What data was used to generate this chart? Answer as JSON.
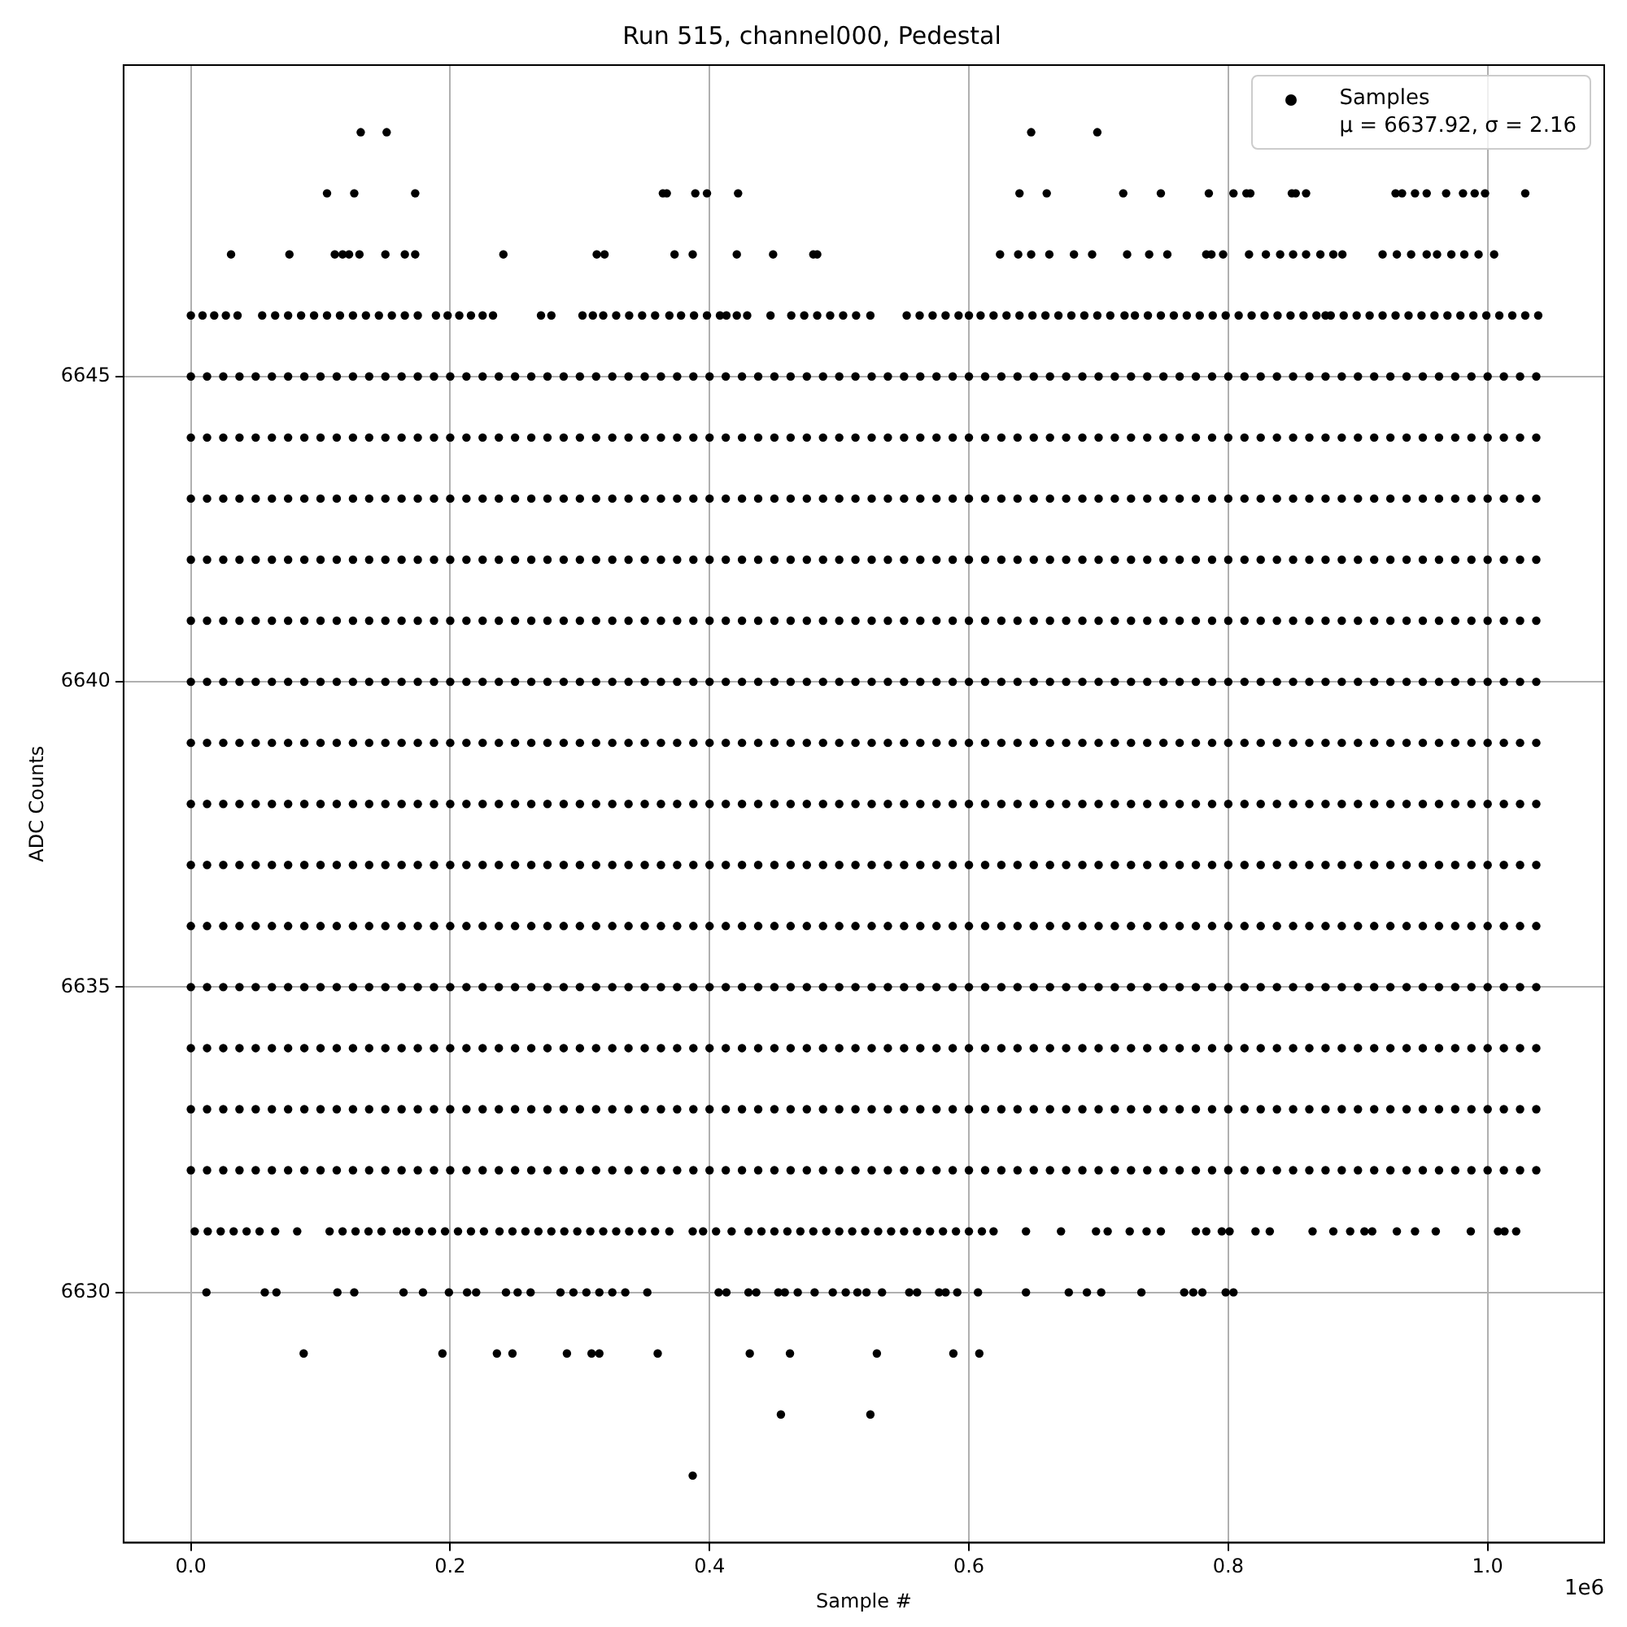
{
  "chart_data": {
    "type": "scatter",
    "title": "Run 515, channel000, Pedestal",
    "xlabel": "Sample #",
    "ylabel": "ADC Counts",
    "annotations": [
      "1e6"
    ],
    "x": [
      0,
      0.0125,
      0.025,
      0.0375,
      0.05,
      0.0625,
      0.075,
      0.0875,
      0.1,
      0.1125,
      0.125,
      0.1375,
      0.15,
      0.1625,
      0.175,
      0.1875,
      0.2,
      0.2125,
      0.225,
      0.2375,
      0.25,
      0.2625,
      0.275,
      0.2875,
      0.3,
      0.3125,
      0.325,
      0.3375,
      0.35,
      0.3625,
      0.375,
      0.3875,
      0.4,
      0.4125,
      0.425,
      0.4375,
      0.45,
      0.4625,
      0.475,
      0.4875,
      0.5,
      0.5125,
      0.525,
      0.5375,
      0.55,
      0.5625,
      0.575,
      0.5875,
      0.6,
      0.6125,
      0.625,
      0.6375,
      0.65,
      0.6625,
      0.675,
      0.6875,
      0.7,
      0.7125,
      0.725,
      0.7375,
      0.75,
      0.7625,
      0.775,
      0.7875,
      0.8,
      0.8125,
      0.825,
      0.8375,
      0.85,
      0.8625,
      0.875,
      0.8875,
      0.9,
      0.9125,
      0.925,
      0.9375,
      0.95,
      0.9625,
      0.975,
      0.9875,
      1,
      1.0125,
      1.025,
      1.0375
    ],
    "series": [
      {
        "name": "Samples\nμ = 6637.92, σ = 2.16",
        "color": "#000000",
        "values": [
          6645,
          6645,
          6645,
          6645,
          6645,
          6645,
          6645,
          6645,
          6645,
          6645,
          6645,
          6645,
          6645,
          6645,
          6645,
          6645,
          6645,
          6645,
          6645,
          6645,
          6645,
          6645,
          6645,
          6645,
          6645,
          6645,
          6645,
          6645,
          6645,
          6645,
          6645,
          6645,
          6645,
          6645,
          6645,
          6645,
          6645,
          6645,
          6645,
          6645,
          6645,
          6645,
          6645,
          6645,
          6645,
          6645,
          6645,
          6645,
          6645,
          6645,
          6645,
          6645,
          6645,
          6645,
          6645,
          6645,
          6645,
          6645,
          6645,
          6645,
          6645,
          6645,
          6645,
          6645,
          6645,
          6645,
          6645,
          6645,
          6645,
          6645,
          6645,
          6645,
          6645,
          6645,
          6645,
          6645,
          6645,
          6645,
          6645,
          6645,
          6645,
          6645,
          6645,
          6645
        ]
      },
      {
        "color": "#000000",
        "values": [
          6644,
          6644,
          6644,
          6644,
          6644,
          6644,
          6644,
          6644,
          6644,
          6644,
          6644,
          6644,
          6644,
          6644,
          6644,
          6644,
          6644,
          6644,
          6644,
          6644,
          6644,
          6644,
          6644,
          6644,
          6644,
          6644,
          6644,
          6644,
          6644,
          6644,
          6644,
          6644,
          6644,
          6644,
          6644,
          6644,
          6644,
          6644,
          6644,
          6644,
          6644,
          6644,
          6644,
          6644,
          6644,
          6644,
          6644,
          6644,
          6644,
          6644,
          6644,
          6644,
          6644,
          6644,
          6644,
          6644,
          6644,
          6644,
          6644,
          6644,
          6644,
          6644,
          6644,
          6644,
          6644,
          6644,
          6644,
          6644,
          6644,
          6644,
          6644,
          6644,
          6644,
          6644,
          6644,
          6644,
          6644,
          6644,
          6644,
          6644,
          6644,
          6644,
          6644,
          6644
        ]
      },
      {
        "color": "#000000",
        "values": [
          6643,
          6643,
          6643,
          6643,
          6643,
          6643,
          6643,
          6643,
          6643,
          6643,
          6643,
          6643,
          6643,
          6643,
          6643,
          6643,
          6643,
          6643,
          6643,
          6643,
          6643,
          6643,
          6643,
          6643,
          6643,
          6643,
          6643,
          6643,
          6643,
          6643,
          6643,
          6643,
          6643,
          6643,
          6643,
          6643,
          6643,
          6643,
          6643,
          6643,
          6643,
          6643,
          6643,
          6643,
          6643,
          6643,
          6643,
          6643,
          6643,
          6643,
          6643,
          6643,
          6643,
          6643,
          6643,
          6643,
          6643,
          6643,
          6643,
          6643,
          6643,
          6643,
          6643,
          6643,
          6643,
          6643,
          6643,
          6643,
          6643,
          6643,
          6643,
          6643,
          6643,
          6643,
          6643,
          6643,
          6643,
          6643,
          6643,
          6643,
          6643,
          6643,
          6643,
          6643
        ]
      },
      {
        "color": "#000000",
        "values": [
          6642,
          6642,
          6642,
          6642,
          6642,
          6642,
          6642,
          6642,
          6642,
          6642,
          6642,
          6642,
          6642,
          6642,
          6642,
          6642,
          6642,
          6642,
          6642,
          6642,
          6642,
          6642,
          6642,
          6642,
          6642,
          6642,
          6642,
          6642,
          6642,
          6642,
          6642,
          6642,
          6642,
          6642,
          6642,
          6642,
          6642,
          6642,
          6642,
          6642,
          6642,
          6642,
          6642,
          6642,
          6642,
          6642,
          6642,
          6642,
          6642,
          6642,
          6642,
          6642,
          6642,
          6642,
          6642,
          6642,
          6642,
          6642,
          6642,
          6642,
          6642,
          6642,
          6642,
          6642,
          6642,
          6642,
          6642,
          6642,
          6642,
          6642,
          6642,
          6642,
          6642,
          6642,
          6642,
          6642,
          6642,
          6642,
          6642,
          6642,
          6642,
          6642,
          6642,
          6642
        ]
      },
      {
        "color": "#000000",
        "values": [
          6641,
          6641,
          6641,
          6641,
          6641,
          6641,
          6641,
          6641,
          6641,
          6641,
          6641,
          6641,
          6641,
          6641,
          6641,
          6641,
          6641,
          6641,
          6641,
          6641,
          6641,
          6641,
          6641,
          6641,
          6641,
          6641,
          6641,
          6641,
          6641,
          6641,
          6641,
          6641,
          6641,
          6641,
          6641,
          6641,
          6641,
          6641,
          6641,
          6641,
          6641,
          6641,
          6641,
          6641,
          6641,
          6641,
          6641,
          6641,
          6641,
          6641,
          6641,
          6641,
          6641,
          6641,
          6641,
          6641,
          6641,
          6641,
          6641,
          6641,
          6641,
          6641,
          6641,
          6641,
          6641,
          6641,
          6641,
          6641,
          6641,
          6641,
          6641,
          6641,
          6641,
          6641,
          6641,
          6641,
          6641,
          6641,
          6641,
          6641,
          6641,
          6641,
          6641,
          6641
        ]
      },
      {
        "color": "#000000",
        "values": [
          6640,
          6640,
          6640,
          6640,
          6640,
          6640,
          6640,
          6640,
          6640,
          6640,
          6640,
          6640,
          6640,
          6640,
          6640,
          6640,
          6640,
          6640,
          6640,
          6640,
          6640,
          6640,
          6640,
          6640,
          6640,
          6640,
          6640,
          6640,
          6640,
          6640,
          6640,
          6640,
          6640,
          6640,
          6640,
          6640,
          6640,
          6640,
          6640,
          6640,
          6640,
          6640,
          6640,
          6640,
          6640,
          6640,
          6640,
          6640,
          6640,
          6640,
          6640,
          6640,
          6640,
          6640,
          6640,
          6640,
          6640,
          6640,
          6640,
          6640,
          6640,
          6640,
          6640,
          6640,
          6640,
          6640,
          6640,
          6640,
          6640,
          6640,
          6640,
          6640,
          6640,
          6640,
          6640,
          6640,
          6640,
          6640,
          6640,
          6640,
          6640,
          6640,
          6640,
          6640
        ]
      },
      {
        "color": "#000000",
        "values": [
          6639,
          6639,
          6639,
          6639,
          6639,
          6639,
          6639,
          6639,
          6639,
          6639,
          6639,
          6639,
          6639,
          6639,
          6639,
          6639,
          6639,
          6639,
          6639,
          6639,
          6639,
          6639,
          6639,
          6639,
          6639,
          6639,
          6639,
          6639,
          6639,
          6639,
          6639,
          6639,
          6639,
          6639,
          6639,
          6639,
          6639,
          6639,
          6639,
          6639,
          6639,
          6639,
          6639,
          6639,
          6639,
          6639,
          6639,
          6639,
          6639,
          6639,
          6639,
          6639,
          6639,
          6639,
          6639,
          6639,
          6639,
          6639,
          6639,
          6639,
          6639,
          6639,
          6639,
          6639,
          6639,
          6639,
          6639,
          6639,
          6639,
          6639,
          6639,
          6639,
          6639,
          6639,
          6639,
          6639,
          6639,
          6639,
          6639,
          6639,
          6639,
          6639,
          6639,
          6639
        ]
      },
      {
        "color": "#000000",
        "values": [
          6638,
          6638,
          6638,
          6638,
          6638,
          6638,
          6638,
          6638,
          6638,
          6638,
          6638,
          6638,
          6638,
          6638,
          6638,
          6638,
          6638,
          6638,
          6638,
          6638,
          6638,
          6638,
          6638,
          6638,
          6638,
          6638,
          6638,
          6638,
          6638,
          6638,
          6638,
          6638,
          6638,
          6638,
          6638,
          6638,
          6638,
          6638,
          6638,
          6638,
          6638,
          6638,
          6638,
          6638,
          6638,
          6638,
          6638,
          6638,
          6638,
          6638,
          6638,
          6638,
          6638,
          6638,
          6638,
          6638,
          6638,
          6638,
          6638,
          6638,
          6638,
          6638,
          6638,
          6638,
          6638,
          6638,
          6638,
          6638,
          6638,
          6638,
          6638,
          6638,
          6638,
          6638,
          6638,
          6638,
          6638,
          6638,
          6638,
          6638,
          6638,
          6638,
          6638,
          6638
        ]
      },
      {
        "color": "#000000",
        "values": [
          6637,
          6637,
          6637,
          6637,
          6637,
          6637,
          6637,
          6637,
          6637,
          6637,
          6637,
          6637,
          6637,
          6637,
          6637,
          6637,
          6637,
          6637,
          6637,
          6637,
          6637,
          6637,
          6637,
          6637,
          6637,
          6637,
          6637,
          6637,
          6637,
          6637,
          6637,
          6637,
          6637,
          6637,
          6637,
          6637,
          6637,
          6637,
          6637,
          6637,
          6637,
          6637,
          6637,
          6637,
          6637,
          6637,
          6637,
          6637,
          6637,
          6637,
          6637,
          6637,
          6637,
          6637,
          6637,
          6637,
          6637,
          6637,
          6637,
          6637,
          6637,
          6637,
          6637,
          6637,
          6637,
          6637,
          6637,
          6637,
          6637,
          6637,
          6637,
          6637,
          6637,
          6637,
          6637,
          6637,
          6637,
          6637,
          6637,
          6637,
          6637,
          6637,
          6637,
          6637
        ]
      },
      {
        "color": "#000000",
        "values": [
          6636,
          6636,
          6636,
          6636,
          6636,
          6636,
          6636,
          6636,
          6636,
          6636,
          6636,
          6636,
          6636,
          6636,
          6636,
          6636,
          6636,
          6636,
          6636,
          6636,
          6636,
          6636,
          6636,
          6636,
          6636,
          6636,
          6636,
          6636,
          6636,
          6636,
          6636,
          6636,
          6636,
          6636,
          6636,
          6636,
          6636,
          6636,
          6636,
          6636,
          6636,
          6636,
          6636,
          6636,
          6636,
          6636,
          6636,
          6636,
          6636,
          6636,
          6636,
          6636,
          6636,
          6636,
          6636,
          6636,
          6636,
          6636,
          6636,
          6636,
          6636,
          6636,
          6636,
          6636,
          6636,
          6636,
          6636,
          6636,
          6636,
          6636,
          6636,
          6636,
          6636,
          6636,
          6636,
          6636,
          6636,
          6636,
          6636,
          6636,
          6636,
          6636,
          6636,
          6636
        ]
      },
      {
        "color": "#000000",
        "values": [
          6635,
          6635,
          6635,
          6635,
          6635,
          6635,
          6635,
          6635,
          6635,
          6635,
          6635,
          6635,
          6635,
          6635,
          6635,
          6635,
          6635,
          6635,
          6635,
          6635,
          6635,
          6635,
          6635,
          6635,
          6635,
          6635,
          6635,
          6635,
          6635,
          6635,
          6635,
          6635,
          6635,
          6635,
          6635,
          6635,
          6635,
          6635,
          6635,
          6635,
          6635,
          6635,
          6635,
          6635,
          6635,
          6635,
          6635,
          6635,
          6635,
          6635,
          6635,
          6635,
          6635,
          6635,
          6635,
          6635,
          6635,
          6635,
          6635,
          6635,
          6635,
          6635,
          6635,
          6635,
          6635,
          6635,
          6635,
          6635,
          6635,
          6635,
          6635,
          6635,
          6635,
          6635,
          6635,
          6635,
          6635,
          6635,
          6635,
          6635,
          6635,
          6635,
          6635,
          6635
        ]
      },
      {
        "color": "#000000",
        "values": [
          6634,
          6634,
          6634,
          6634,
          6634,
          6634,
          6634,
          6634,
          6634,
          6634,
          6634,
          6634,
          6634,
          6634,
          6634,
          6634,
          6634,
          6634,
          6634,
          6634,
          6634,
          6634,
          6634,
          6634,
          6634,
          6634,
          6634,
          6634,
          6634,
          6634,
          6634,
          6634,
          6634,
          6634,
          6634,
          6634,
          6634,
          6634,
          6634,
          6634,
          6634,
          6634,
          6634,
          6634,
          6634,
          6634,
          6634,
          6634,
          6634,
          6634,
          6634,
          6634,
          6634,
          6634,
          6634,
          6634,
          6634,
          6634,
          6634,
          6634,
          6634,
          6634,
          6634,
          6634,
          6634,
          6634,
          6634,
          6634,
          6634,
          6634,
          6634,
          6634,
          6634,
          6634,
          6634,
          6634,
          6634,
          6634,
          6634,
          6634,
          6634,
          6634,
          6634,
          6634
        ]
      },
      {
        "color": "#000000",
        "values": [
          6633,
          6633,
          6633,
          6633,
          6633,
          6633,
          6633,
          6633,
          6633,
          6633,
          6633,
          6633,
          6633,
          6633,
          6633,
          6633,
          6633,
          6633,
          6633,
          6633,
          6633,
          6633,
          6633,
          6633,
          6633,
          6633,
          6633,
          6633,
          6633,
          6633,
          6633,
          6633,
          6633,
          6633,
          6633,
          6633,
          6633,
          6633,
          6633,
          6633,
          6633,
          6633,
          6633,
          6633,
          6633,
          6633,
          6633,
          6633,
          6633,
          6633,
          6633,
          6633,
          6633,
          6633,
          6633,
          6633,
          6633,
          6633,
          6633,
          6633,
          6633,
          6633,
          6633,
          6633,
          6633,
          6633,
          6633,
          6633,
          6633,
          6633,
          6633,
          6633,
          6633,
          6633,
          6633,
          6633,
          6633,
          6633,
          6633,
          6633,
          6633,
          6633,
          6633,
          6633
        ]
      },
      {
        "color": "#000000",
        "values": [
          6632,
          6632,
          6632,
          6632,
          6632,
          6632,
          6632,
          6632,
          6632,
          6632,
          6632,
          6632,
          6632,
          6632,
          6632,
          6632,
          6632,
          6632,
          6632,
          6632,
          6632,
          6632,
          6632,
          6632,
          6632,
          6632,
          6632,
          6632,
          6632,
          6632,
          6632,
          6632,
          6632,
          6632,
          6632,
          6632,
          6632,
          6632,
          6632,
          6632,
          6632,
          6632,
          6632,
          6632,
          6632,
          6632,
          6632,
          6632,
          6632,
          6632,
          6632,
          6632,
          6632,
          6632,
          6632,
          6632,
          6632,
          6632,
          6632,
          6632,
          6632,
          6632,
          6632,
          6632,
          6632,
          6632,
          6632,
          6632,
          6632,
          6632,
          6632,
          6632,
          6632,
          6632,
          6632,
          6632,
          6632,
          6632,
          6632,
          6632,
          6632,
          6632,
          6632,
          6632
        ]
      },
      {
        "color": "#000000",
        "x": [
          0,
          0.009,
          0.018,
          0.027,
          0.036,
          0.055,
          0.065,
          0.075,
          0.085,
          0.095,
          0.105,
          0.115,
          0.125,
          0.135,
          0.145,
          0.155,
          0.165,
          0.175,
          0.189,
          0.198,
          0.207,
          0.216,
          0.225,
          0.233,
          0.27,
          0.278,
          0.302,
          0.31,
          0.318,
          0.328,
          0.338,
          0.348,
          0.358,
          0.369,
          0.378,
          0.388,
          0.398,
          0.408,
          0.413,
          0.421,
          0.429,
          0.447,
          0.463,
          0.473,
          0.483,
          0.493,
          0.503,
          0.513,
          0.524,
          0.552,
          0.562,
          0.572,
          0.582,
          0.592,
          0.6,
          0.609,
          0.619,
          0.629,
          0.639,
          0.649,
          0.659,
          0.669,
          0.679,
          0.689,
          0.699,
          0.709,
          0.72,
          0.728,
          0.738,
          0.748,
          0.758,
          0.768,
          0.778,
          0.788,
          0.798,
          0.808,
          0.818,
          0.828,
          0.838,
          0.848,
          0.858,
          0.868,
          0.875,
          0.879,
          0.889,
          0.899,
          0.909,
          0.919,
          0.929,
          0.939,
          0.949,
          0.959,
          0.969,
          0.979,
          0.989,
          0.999,
          1.009,
          1.019,
          1.029,
          1.039
        ],
        "values": [
          6646,
          6646,
          6646,
          6646,
          6646,
          6646,
          6646,
          6646,
          6646,
          6646,
          6646,
          6646,
          6646,
          6646,
          6646,
          6646,
          6646,
          6646,
          6646,
          6646,
          6646,
          6646,
          6646,
          6646,
          6646,
          6646,
          6646,
          6646,
          6646,
          6646,
          6646,
          6646,
          6646,
          6646,
          6646,
          6646,
          6646,
          6646,
          6646,
          6646,
          6646,
          6646,
          6646,
          6646,
          6646,
          6646,
          6646,
          6646,
          6646,
          6646,
          6646,
          6646,
          6646,
          6646,
          6646,
          6646,
          6646,
          6646,
          6646,
          6646,
          6646,
          6646,
          6646,
          6646,
          6646,
          6646,
          6646,
          6646,
          6646,
          6646,
          6646,
          6646,
          6646,
          6646,
          6646,
          6646,
          6646,
          6646,
          6646,
          6646,
          6646,
          6646,
          6646,
          6646,
          6646,
          6646,
          6646,
          6646,
          6646,
          6646,
          6646,
          6646,
          6646,
          6646,
          6646,
          6646,
          6646,
          6646,
          6646,
          6646
        ]
      },
      {
        "color": "#000000",
        "x": [
          0.031,
          0.076,
          0.111,
          0.117,
          0.122,
          0.13,
          0.15,
          0.165,
          0.173,
          0.241,
          0.313,
          0.319,
          0.373,
          0.387,
          0.421,
          0.449,
          0.48,
          0.483,
          0.624,
          0.638,
          0.648,
          0.662,
          0.681,
          0.695,
          0.722,
          0.739,
          0.753,
          0.783,
          0.787,
          0.796,
          0.816,
          0.829,
          0.84,
          0.85,
          0.86,
          0.871,
          0.881,
          0.888,
          0.919,
          0.93,
          0.941,
          0.953,
          0.961,
          0.972,
          0.982,
          0.993,
          1.005
        ],
        "values": [
          6647,
          6647,
          6647,
          6647,
          6647,
          6647,
          6647,
          6647,
          6647,
          6647,
          6647,
          6647,
          6647,
          6647,
          6647,
          6647,
          6647,
          6647,
          6647,
          6647,
          6647,
          6647,
          6647,
          6647,
          6647,
          6647,
          6647,
          6647,
          6647,
          6647,
          6647,
          6647,
          6647,
          6647,
          6647,
          6647,
          6647,
          6647,
          6647,
          6647,
          6647,
          6647,
          6647,
          6647,
          6647,
          6647,
          6647
        ]
      },
      {
        "color": "#000000",
        "x": [
          0.105,
          0.126,
          0.173,
          0.364,
          0.367,
          0.389,
          0.398,
          0.422,
          0.639,
          0.66,
          0.719,
          0.748,
          0.785,
          0.804,
          0.814,
          0.817,
          0.849,
          0.852,
          0.86,
          0.929,
          0.934,
          0.944,
          0.953,
          0.968,
          0.981,
          0.99,
          0.998,
          1.029
        ],
        "values": [
          6648,
          6648,
          6648,
          6648,
          6648,
          6648,
          6648,
          6648,
          6648,
          6648,
          6648,
          6648,
          6648,
          6648,
          6648,
          6648,
          6648,
          6648,
          6648,
          6648,
          6648,
          6648,
          6648,
          6648,
          6648,
          6648,
          6648,
          6648
        ]
      },
      {
        "color": "#000000",
        "x": [
          0.131,
          0.151,
          0.648,
          0.699
        ],
        "values": [
          6649,
          6649,
          6649,
          6649
        ]
      },
      {
        "color": "#000000",
        "x": [
          0.003,
          0.013,
          0.023,
          0.033,
          0.043,
          0.053,
          0.065,
          0.082,
          0.107,
          0.117,
          0.127,
          0.137,
          0.147,
          0.159,
          0.166,
          0.176,
          0.186,
          0.196,
          0.206,
          0.216,
          0.226,
          0.238,
          0.248,
          0.258,
          0.268,
          0.278,
          0.288,
          0.298,
          0.308,
          0.318,
          0.328,
          0.338,
          0.348,
          0.358,
          0.369,
          0.387,
          0.395,
          0.405,
          0.417,
          0.43,
          0.44,
          0.45,
          0.46,
          0.47,
          0.48,
          0.49,
          0.5,
          0.51,
          0.52,
          0.53,
          0.54,
          0.55,
          0.56,
          0.57,
          0.58,
          0.59,
          0.6,
          0.61,
          0.619,
          0.644,
          0.671,
          0.698,
          0.707,
          0.724,
          0.737,
          0.748,
          0.775,
          0.783,
          0.795,
          0.801,
          0.821,
          0.832,
          0.865,
          0.881,
          0.894,
          0.905,
          0.911,
          0.93,
          0.944,
          0.96,
          0.987,
          1.008,
          1.013,
          1.022
        ],
        "values": [
          6631,
          6631,
          6631,
          6631,
          6631,
          6631,
          6631,
          6631,
          6631,
          6631,
          6631,
          6631,
          6631,
          6631,
          6631,
          6631,
          6631,
          6631,
          6631,
          6631,
          6631,
          6631,
          6631,
          6631,
          6631,
          6631,
          6631,
          6631,
          6631,
          6631,
          6631,
          6631,
          6631,
          6631,
          6631,
          6631,
          6631,
          6631,
          6631,
          6631,
          6631,
          6631,
          6631,
          6631,
          6631,
          6631,
          6631,
          6631,
          6631,
          6631,
          6631,
          6631,
          6631,
          6631,
          6631,
          6631,
          6631,
          6631,
          6631,
          6631,
          6631,
          6631,
          6631,
          6631,
          6631,
          6631,
          6631,
          6631,
          6631,
          6631,
          6631,
          6631,
          6631,
          6631,
          6631,
          6631,
          6631,
          6631,
          6631,
          6631,
          6631,
          6631,
          6631,
          6631
        ]
      },
      {
        "color": "#000000",
        "x": [
          0.012,
          0.057,
          0.066,
          0.113,
          0.126,
          0.164,
          0.179,
          0.199,
          0.213,
          0.22,
          0.243,
          0.252,
          0.262,
          0.285,
          0.295,
          0.305,
          0.315,
          0.325,
          0.335,
          0.352,
          0.407,
          0.413,
          0.43,
          0.436,
          0.453,
          0.458,
          0.468,
          0.481,
          0.495,
          0.505,
          0.514,
          0.521,
          0.533,
          0.554,
          0.56,
          0.577,
          0.582,
          0.591,
          0.607,
          0.644,
          0.677,
          0.691,
          0.702,
          0.733,
          0.766,
          0.773,
          0.78,
          0.798,
          0.804
        ],
        "values": [
          6630,
          6630,
          6630,
          6630,
          6630,
          6630,
          6630,
          6630,
          6630,
          6630,
          6630,
          6630,
          6630,
          6630,
          6630,
          6630,
          6630,
          6630,
          6630,
          6630,
          6630,
          6630,
          6630,
          6630,
          6630,
          6630,
          6630,
          6630,
          6630,
          6630,
          6630,
          6630,
          6630,
          6630,
          6630,
          6630,
          6630,
          6630,
          6630,
          6630,
          6630,
          6630,
          6630,
          6630,
          6630,
          6630,
          6630,
          6630,
          6630
        ]
      },
      {
        "color": "#000000",
        "x": [
          0.087,
          0.194,
          0.236,
          0.248,
          0.29,
          0.309,
          0.315,
          0.36,
          0.431,
          0.462,
          0.529,
          0.588,
          0.608
        ],
        "values": [
          6629,
          6629,
          6629,
          6629,
          6629,
          6629,
          6629,
          6629,
          6629,
          6629,
          6629,
          6629,
          6629
        ]
      },
      {
        "color": "#000000",
        "x": [
          0.455,
          0.524
        ],
        "values": [
          6628,
          6628
        ]
      },
      {
        "color": "#000000",
        "x": [
          0.387
        ],
        "values": [
          6627
        ]
      }
    ],
    "xlim": [
      -0.0519,
      1.0899
    ],
    "ylim": [
      6625.9,
      6650.1
    ],
    "xticks": [
      {
        "value": 0,
        "label": "0.0"
      },
      0.2,
      0.4,
      0.6,
      0.8,
      {
        "value": 1,
        "label": "1.0"
      }
    ],
    "yticks": [
      6630,
      6635,
      6640,
      6645
    ],
    "grid": true,
    "legend": "top right",
    "marker": "circle"
  }
}
